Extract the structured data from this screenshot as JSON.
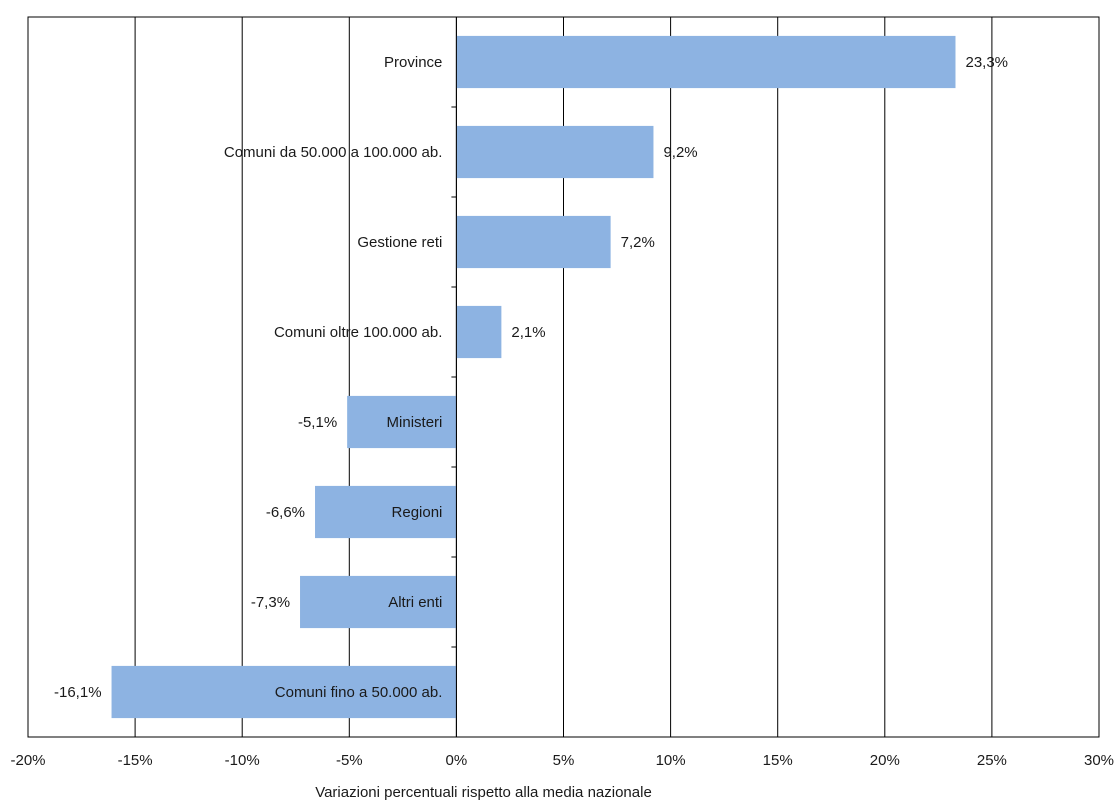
{
  "chart_data": {
    "type": "bar",
    "orientation": "horizontal",
    "categories": [
      "Province",
      "Comuni da 50.000 a 100.000 ab.",
      "Gestione reti",
      "Comuni oltre 100.000 ab.",
      "Ministeri",
      "Regioni",
      "Altri enti",
      "Comuni fino a 50.000 ab."
    ],
    "values": [
      23.3,
      9.2,
      7.2,
      2.1,
      -5.1,
      -6.6,
      -7.3,
      -16.1
    ],
    "data_labels": [
      "23,3%",
      "9,2%",
      "7,2%",
      "2,1%",
      "-5,1%",
      "-6,6%",
      "-7,3%",
      "-16,1%"
    ],
    "xlim": [
      -20,
      30
    ],
    "xticks": [
      -20,
      -15,
      -10,
      -5,
      0,
      5,
      10,
      15,
      20,
      25,
      30
    ],
    "xtick_labels": [
      "-20%",
      "-15%",
      "-10%",
      "-5%",
      "0%",
      "5%",
      "10%",
      "15%",
      "20%",
      "25%",
      "30%"
    ],
    "xlabel": "Variazioni percentuali rispetto alla media nazionale",
    "grid": "vertical",
    "legend": "none",
    "colors": {
      "bar": "#8db3e2",
      "grid": "#000000",
      "text": "#1a1a1a"
    }
  }
}
